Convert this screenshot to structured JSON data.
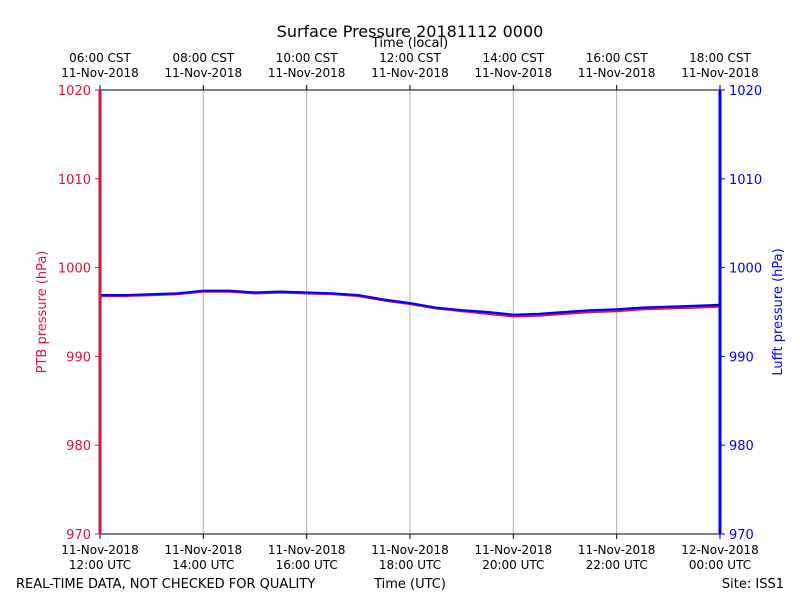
{
  "chart_data": {
    "type": "line",
    "title": "Surface Pressure 20181112 0000",
    "xlabel_top": "Time (local)",
    "xlabel_bottom": "Time (UTC)",
    "ylabel_left": "PTB pressure (hPa)",
    "ylabel_right": "Lufft pressure (hPa)",
    "footer_left": "REAL-TIME DATA, NOT CHECKED FOR QUALITY",
    "footer_right": "Site: ISS1",
    "ylim": [
      970,
      1020
    ],
    "yticks": [
      "970",
      "980",
      "990",
      "1000",
      "1010",
      "1020"
    ],
    "x_range_hours_utc": [
      12,
      24
    ],
    "x_bottom_ticks": [
      {
        "date": "11-Nov-2018",
        "time": "12:00 UTC"
      },
      {
        "date": "11-Nov-2018",
        "time": "14:00 UTC"
      },
      {
        "date": "11-Nov-2018",
        "time": "16:00 UTC"
      },
      {
        "date": "11-Nov-2018",
        "time": "18:00 UTC"
      },
      {
        "date": "11-Nov-2018",
        "time": "20:00 UTC"
      },
      {
        "date": "11-Nov-2018",
        "time": "22:00 UTC"
      },
      {
        "date": "12-Nov-2018",
        "time": "00:00 UTC"
      }
    ],
    "x_top_ticks": [
      {
        "time": "06:00 CST",
        "date": "11-Nov-2018"
      },
      {
        "time": "08:00 CST",
        "date": "11-Nov-2018"
      },
      {
        "time": "10:00 CST",
        "date": "11-Nov-2018"
      },
      {
        "time": "12:00 CST",
        "date": "11-Nov-2018"
      },
      {
        "time": "14:00 CST",
        "date": "11-Nov-2018"
      },
      {
        "time": "16:00 CST",
        "date": "11-Nov-2018"
      },
      {
        "time": "18:00 CST",
        "date": "11-Nov-2018"
      }
    ],
    "grid": "vertical",
    "colors": {
      "ptb": "#dc143c",
      "lufft": "#0000ff",
      "grid": "#b0b0b0"
    },
    "series": [
      {
        "key": "ptb",
        "axis": "left",
        "x": [
          12.0,
          12.5,
          13.0,
          13.5,
          14.0,
          14.5,
          15.0,
          15.5,
          16.0,
          16.5,
          17.0,
          17.5,
          18.0,
          18.5,
          19.0,
          19.5,
          20.0,
          20.5,
          21.0,
          21.5,
          22.0,
          22.5,
          23.0,
          23.5,
          24.0
        ],
        "values": [
          996.8,
          996.8,
          996.9,
          997.0,
          997.3,
          997.3,
          997.1,
          997.2,
          997.1,
          997.0,
          996.8,
          996.3,
          995.9,
          995.4,
          995.1,
          994.8,
          994.5,
          994.6,
          994.8,
          995.0,
          995.1,
          995.3,
          995.4,
          995.5,
          995.6
        ]
      },
      {
        "key": "lufft",
        "axis": "right",
        "x": [
          12.0,
          12.5,
          13.0,
          13.5,
          14.0,
          14.5,
          15.0,
          15.5,
          16.0,
          16.5,
          17.0,
          17.5,
          18.0,
          18.5,
          19.0,
          19.5,
          20.0,
          20.5,
          21.0,
          21.5,
          22.0,
          22.5,
          23.0,
          23.5,
          24.0
        ],
        "values": [
          996.9,
          996.9,
          997.0,
          997.1,
          997.4,
          997.4,
          997.2,
          997.3,
          997.2,
          997.1,
          996.9,
          996.4,
          996.0,
          995.5,
          995.2,
          995.0,
          994.7,
          994.8,
          995.0,
          995.2,
          995.3,
          995.5,
          995.6,
          995.7,
          995.8
        ]
      }
    ]
  }
}
